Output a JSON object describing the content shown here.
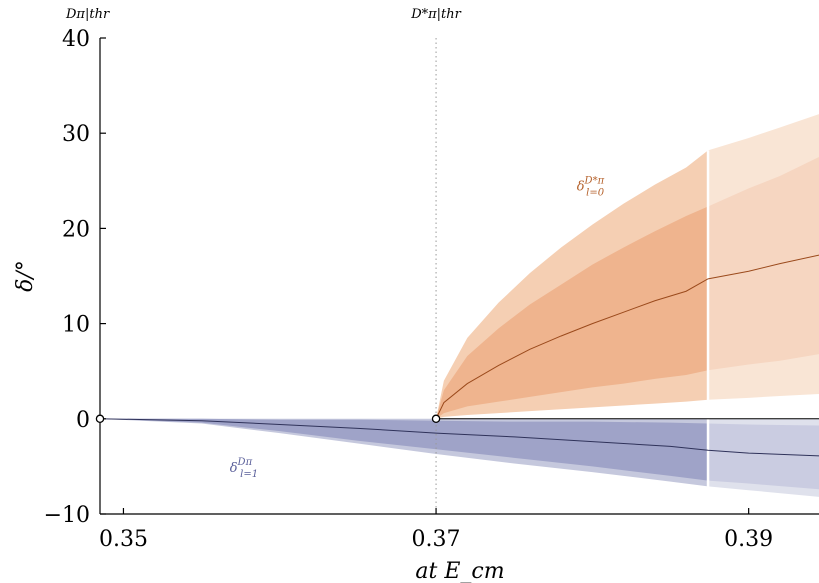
{
  "chart_data": {
    "type": "line",
    "title": "",
    "xlabel": "a_t E_cm",
    "ylabel": "δ/°",
    "xlim": [
      0.3485,
      0.3945
    ],
    "ylim": [
      -10,
      40
    ],
    "xticks": [
      0.35,
      0.37,
      0.39
    ],
    "xtick_labels": [
      "0.35",
      "0.37",
      "0.39"
    ],
    "yticks": [
      -10,
      0,
      10,
      20,
      30,
      40
    ],
    "ytick_labels": [
      "−10",
      "0",
      "10",
      "20",
      "30",
      "40"
    ],
    "grid": false,
    "thresholds": [
      {
        "name": "Dπ|thr",
        "x": 0.3485
      },
      {
        "name": "D*π|thr",
        "x": 0.37
      }
    ],
    "highlight_cut_x": 0.3874,
    "series": [
      {
        "name": "δ_{l=0}^{D*π}",
        "color": "#b5622c",
        "x": [
          0.37,
          0.3705,
          0.372,
          0.374,
          0.376,
          0.378,
          0.38,
          0.382,
          0.384,
          0.386,
          0.3874,
          0.39,
          0.392,
          0.3945
        ],
        "y": [
          0.0,
          1.7,
          3.7,
          5.6,
          7.3,
          8.7,
          10.0,
          11.2,
          12.4,
          13.4,
          14.7,
          15.5,
          16.3,
          17.2
        ],
        "inner_lo": [
          0.0,
          0.6,
          1.3,
          1.8,
          2.3,
          2.8,
          3.3,
          3.7,
          4.2,
          4.6,
          5.1,
          5.7,
          6.1,
          6.8
        ],
        "inner_hi": [
          0.0,
          3.0,
          6.6,
          9.5,
          12.0,
          14.1,
          16.2,
          18.0,
          19.7,
          21.3,
          22.3,
          24.2,
          25.5,
          27.5
        ],
        "outer_lo": [
          0.0,
          0.2,
          0.4,
          0.6,
          0.8,
          1.0,
          1.2,
          1.4,
          1.6,
          1.8,
          2.0,
          2.2,
          2.4,
          2.6
        ],
        "outer_hi": [
          0.0,
          4.0,
          8.5,
          12.2,
          15.3,
          18.0,
          20.4,
          22.6,
          24.6,
          26.4,
          28.2,
          29.5,
          30.6,
          32.0
        ]
      },
      {
        "name": "δ_{l=1}^{Dπ}",
        "color": "#5a5f9a",
        "x": [
          0.3485,
          0.355,
          0.36,
          0.365,
          0.37,
          0.375,
          0.38,
          0.385,
          0.3874,
          0.39,
          0.3945
        ],
        "y": [
          0.0,
          -0.2,
          -0.6,
          -1.0,
          -1.5,
          -1.9,
          -2.4,
          -2.9,
          -3.3,
          -3.6,
          -3.9
        ],
        "inner_lo": [
          0.0,
          -0.4,
          -1.3,
          -2.3,
          -3.2,
          -4.1,
          -5.0,
          -6.0,
          -6.5,
          -6.8,
          -7.4
        ],
        "inner_hi": [
          0.0,
          0.0,
          -0.1,
          -0.1,
          -0.2,
          -0.3,
          -0.3,
          -0.4,
          -0.5,
          -0.6,
          -0.7
        ],
        "outer_lo": [
          0.0,
          -0.5,
          -1.5,
          -2.6,
          -3.7,
          -4.7,
          -5.6,
          -6.6,
          -7.1,
          -7.5,
          -8.2
        ],
        "outer_hi": [
          0.0,
          0.0,
          0.0,
          0.0,
          0.0,
          0.0,
          0.0,
          0.0,
          0.0,
          0.0,
          0.0
        ]
      }
    ],
    "markers": [
      {
        "x": 0.3485,
        "y": 0
      },
      {
        "x": 0.37,
        "y": 0
      }
    ],
    "annotations": [
      {
        "text": "δ",
        "sup": "D*π",
        "sub": "l=0",
        "x": 0.379,
        "y": 24.0,
        "color": "#b5622c"
      },
      {
        "text": "δ",
        "sup": "Dπ",
        "sub": "l=1",
        "x": 0.3568,
        "y": -5.6,
        "color": "#5a5f9a"
      }
    ],
    "colors": {
      "orange_outer": "#f5cfb3",
      "orange_inner": "#efb48e",
      "blue_outer": "#c5c8dd",
      "blue_inner": "#9fa3c8"
    }
  }
}
